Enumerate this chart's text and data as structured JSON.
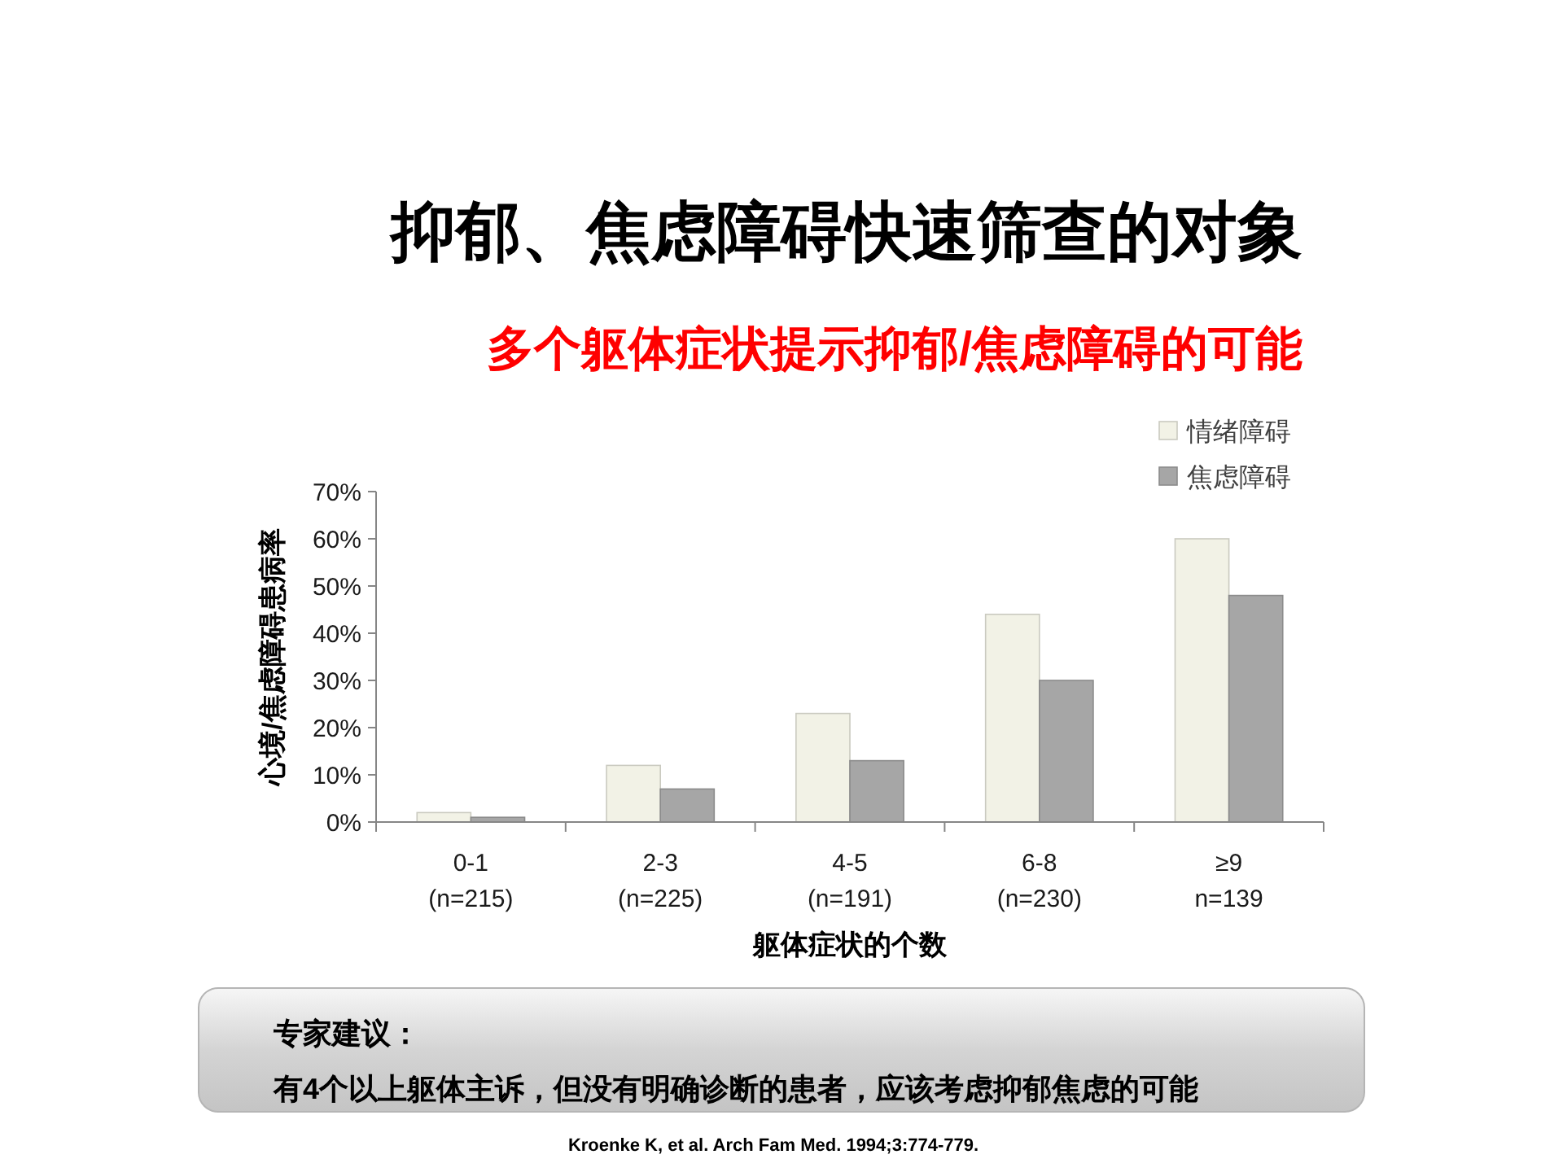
{
  "chart_data": {
    "type": "bar",
    "title": "抑郁、焦虑障碍快速筛查的对象",
    "subtitle": "多个躯体症状提示抑郁/焦虑障碍的可能",
    "xlabel": "躯体症状的个数",
    "ylabel": "心境/焦虑障碍患病率",
    "categories": [
      "0-1\n(n=215)",
      "2-3\n(n=225)",
      "4-5\n(n=191)",
      "6-8\n(n=230)",
      "≥9\nn=139"
    ],
    "series": [
      {
        "name": "情绪障碍",
        "color": "#f2f2e6",
        "values": [
          2,
          12,
          23,
          44,
          60
        ]
      },
      {
        "name": "焦虑障碍",
        "color": "#a6a6a6",
        "values": [
          1,
          7,
          13,
          30,
          48
        ]
      }
    ],
    "ylim": [
      0,
      70
    ],
    "yticks": [
      {
        "value": 0,
        "label": "0%"
      },
      {
        "value": 10,
        "label": "10%"
      },
      {
        "value": 20,
        "label": "20%"
      },
      {
        "value": 30,
        "label": "30%"
      },
      {
        "value": 40,
        "label": "40%"
      },
      {
        "value": 50,
        "label": "50%"
      },
      {
        "value": 60,
        "label": "60%"
      },
      {
        "value": 70,
        "label": "70%"
      }
    ],
    "legend": "top right",
    "annotations": [
      "专家建议：",
      "有4个以上躯体主诉，但没有明确诊断的患者，应该考虑抑郁焦虑的可能",
      "Kroenke K, et al. Arch Fam Med. 1994;3:774-779."
    ]
  }
}
